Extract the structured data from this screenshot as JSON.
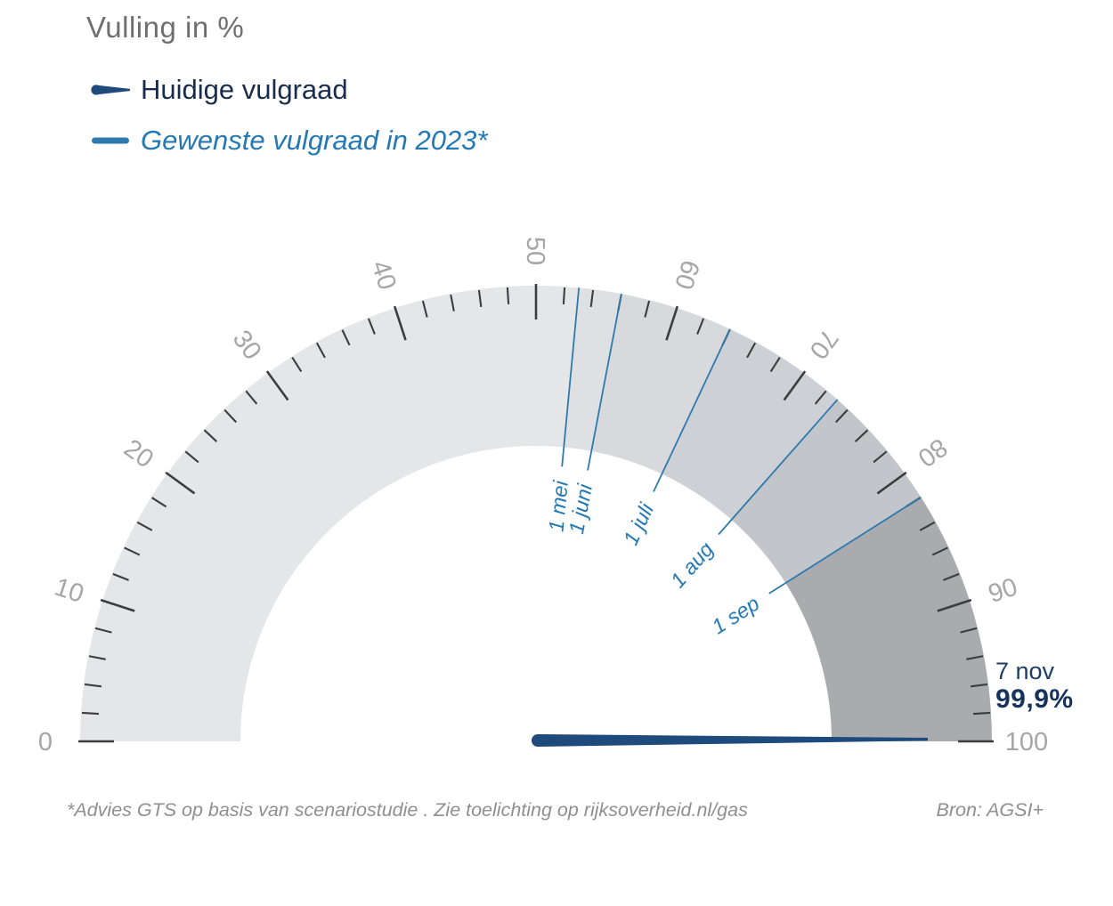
{
  "title": "Vulling in %",
  "legend": [
    {
      "label": "Huidige vulgraad",
      "color": "#1e4a7c"
    },
    {
      "label": "Gewenste vulgraad in 2023*",
      "color": "#2e7aad"
    }
  ],
  "chart_data": {
    "type": "gauge",
    "title": "Vulling in %",
    "unit": "%",
    "min": 0,
    "max": 100,
    "tick_step_minor": 2,
    "tick_step_major": 10,
    "tick_labels": [
      0,
      10,
      20,
      30,
      40,
      50,
      60,
      70,
      80,
      90,
      100
    ],
    "current": {
      "date": "7 nov",
      "value": 99.9,
      "value_label": "99,9%",
      "series": "Huidige vulgraad"
    },
    "targets": [
      {
        "label": "1 mei",
        "value": 53
      },
      {
        "label": "1 juni",
        "value": 56
      },
      {
        "label": "1 juli",
        "value": 64
      },
      {
        "label": "1 aug",
        "value": 73
      },
      {
        "label": "1 sep",
        "value": 82
      }
    ],
    "segments": [
      {
        "from": 0,
        "to": 53,
        "color": "#e5e6e8"
      },
      {
        "from": 53,
        "to": 56,
        "color": "#dee0e3"
      },
      {
        "from": 56,
        "to": 64,
        "color": "#d7d9dd"
      },
      {
        "from": 64,
        "to": 73,
        "color": "#cdd0d4"
      },
      {
        "from": 73,
        "to": 82,
        "color": "#c2c5ca"
      },
      {
        "from": 82,
        "to": 100,
        "color": "#a9abaf"
      }
    ],
    "colors": {
      "needle": "#1e4a7c",
      "needle_tip": "#16365f",
      "target_line": "#2e7aad",
      "target_label": "#2478b4",
      "tick": "#3d3d3d",
      "scale_label": "#a6a6a6"
    }
  },
  "annotation": {
    "date": "7 nov",
    "value": "99,9%"
  },
  "footer": {
    "note": "*Advies GTS op basis van scenariostudie . Zie toelichting op rijksoverheid.nl/gas",
    "source": "Bron: AGSI+"
  }
}
